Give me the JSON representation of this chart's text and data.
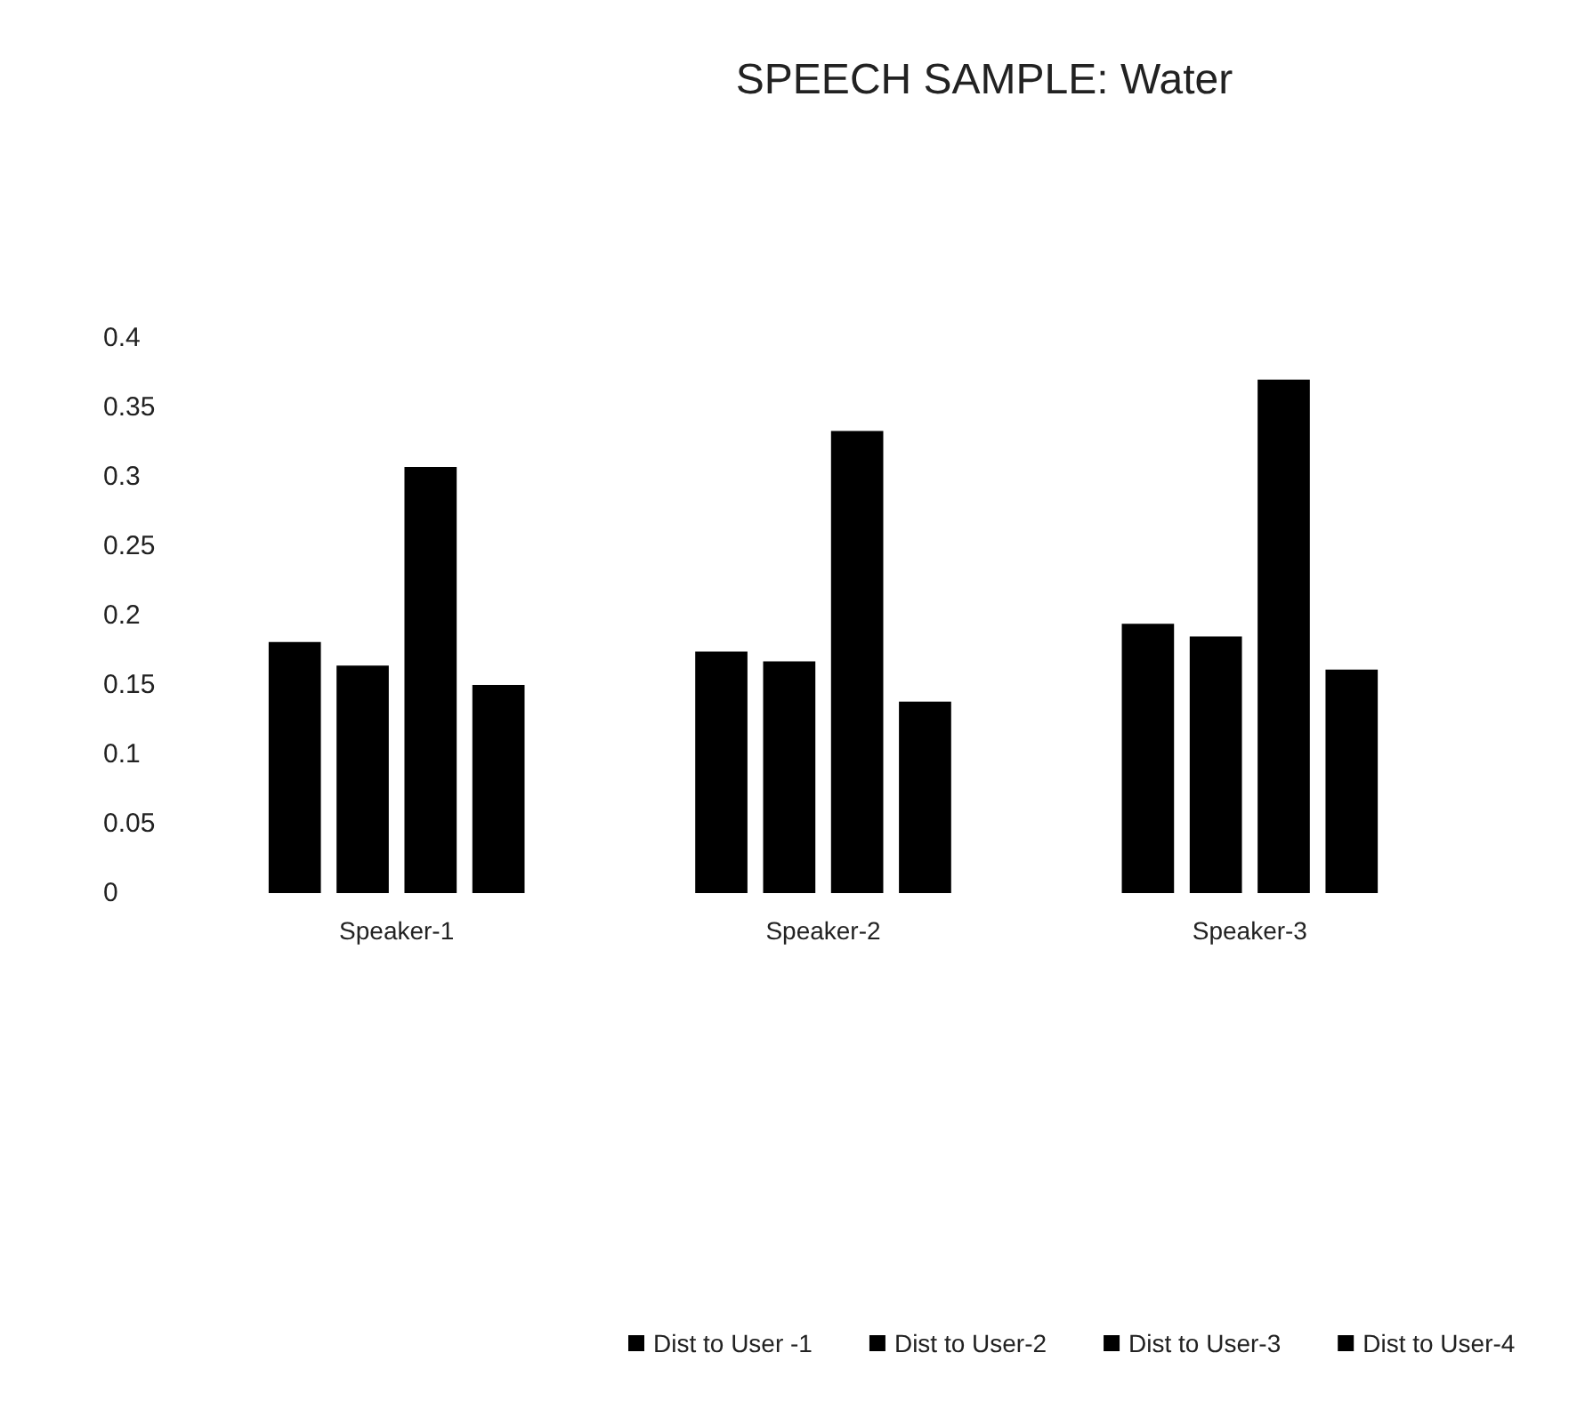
{
  "chart_data": {
    "type": "bar",
    "title": "SPEECH SAMPLE: Water",
    "categories": [
      "Speaker-1",
      "Speaker-2",
      "Speaker-3"
    ],
    "series": [
      {
        "name": "Dist to User -1",
        "color": "#000000",
        "values": [
          0.181,
          0.174,
          0.194
        ]
      },
      {
        "name": "Dist to User-2",
        "color": "#000000",
        "values": [
          0.164,
          0.167,
          0.185
        ]
      },
      {
        "name": "Dist to User-3",
        "color": "#000000",
        "values": [
          0.307,
          0.333,
          0.37
        ]
      },
      {
        "name": "Dist to User-4",
        "color": "#000000",
        "values": [
          0.15,
          0.138,
          0.161
        ]
      }
    ],
    "ylim": [
      0,
      0.4
    ],
    "yticks": [
      0,
      0.05,
      0.1,
      0.15,
      0.2,
      0.25,
      0.3,
      0.35,
      0.4
    ],
    "grid": false,
    "legend": "bottom"
  }
}
